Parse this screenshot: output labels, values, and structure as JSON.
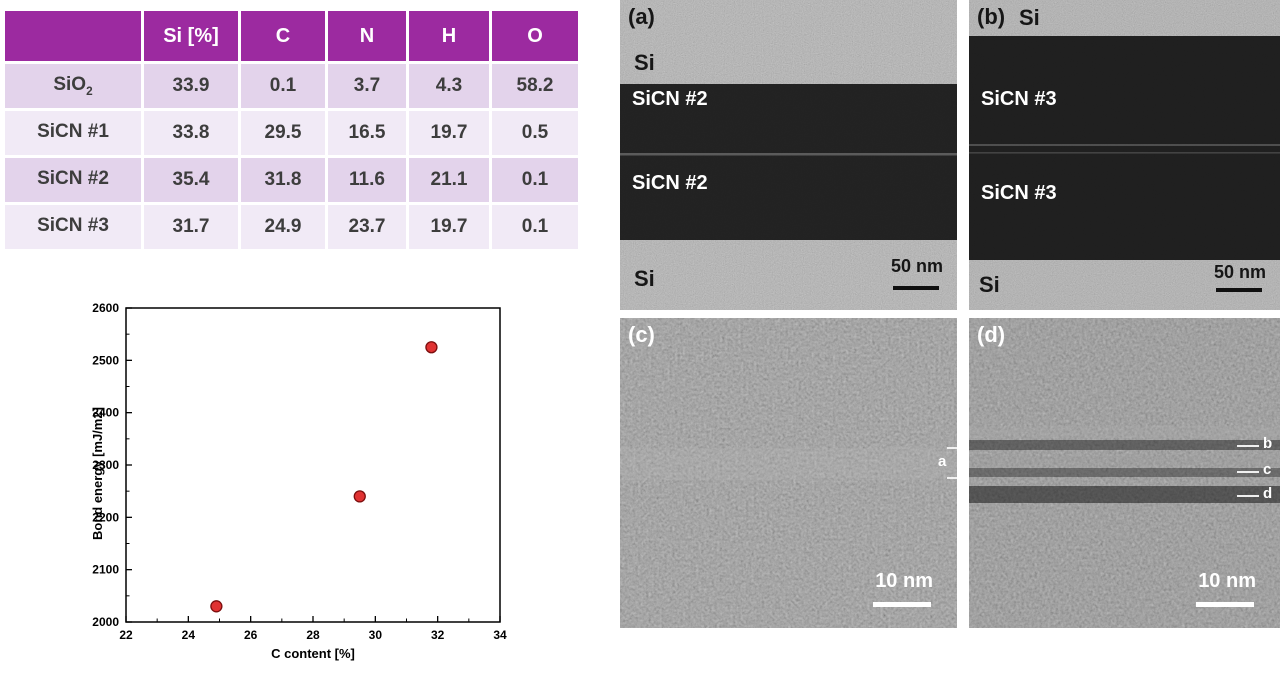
{
  "colors": {
    "table_header_bg": "#9c2aa0",
    "table_row_dark": "#e3d3eb",
    "table_row_light": "#f1eaf6",
    "marker_fill": "#e03232",
    "marker_edge": "#7c0e0e"
  },
  "table": {
    "headers": [
      "",
      "Si [%]",
      "C",
      "N",
      "H",
      "O"
    ],
    "rows": [
      {
        "label_main": "SiO",
        "label_sub": "2",
        "values": [
          "33.9",
          "0.1",
          "3.7",
          "4.3",
          "58.2"
        ]
      },
      {
        "label_main": "SiCN #1",
        "label_sub": "",
        "values": [
          "33.8",
          "29.5",
          "16.5",
          "19.7",
          "0.5"
        ]
      },
      {
        "label_main": "SiCN #2",
        "label_sub": "",
        "values": [
          "35.4",
          "31.8",
          "11.6",
          "21.1",
          "0.1"
        ]
      },
      {
        "label_main": "SiCN #3",
        "label_sub": "",
        "values": [
          "31.7",
          "24.9",
          "23.7",
          "19.7",
          "0.1"
        ]
      }
    ]
  },
  "chart_data": {
    "type": "scatter",
    "xlabel": "C content [%]",
    "ylabel": "Bond energy [mJ/m2]",
    "x": [
      24.9,
      29.5,
      31.8
    ],
    "y": [
      2030,
      2240,
      2525
    ],
    "xlim": [
      22,
      34
    ],
    "ylim": [
      2000,
      2600
    ],
    "xticks": [
      22,
      24,
      26,
      28,
      30,
      32,
      34
    ],
    "yticks": [
      2000,
      2100,
      2200,
      2300,
      2400,
      2500,
      2600
    ],
    "grid": false,
    "legend_position": "none"
  },
  "micrographs": {
    "a": {
      "tag": "(a)",
      "top_label": "Si",
      "layer_label_1": "SiCN #2",
      "layer_label_2": "SiCN #2",
      "bottom_label": "Si",
      "scale_label": "50 nm"
    },
    "b": {
      "tag": "(b)",
      "top_label": "Si",
      "layer_label_1": "SiCN #3",
      "layer_label_2": "SiCN #3",
      "bottom_label": "Si",
      "scale_label": "50 nm"
    },
    "c": {
      "tag": "(c)",
      "marker_label": "a",
      "scale_label": "10 nm"
    },
    "d": {
      "tag": "(d)",
      "marker_label_1": "b",
      "marker_label_2": "c",
      "marker_label_3": "d",
      "scale_label": "10 nm"
    }
  }
}
